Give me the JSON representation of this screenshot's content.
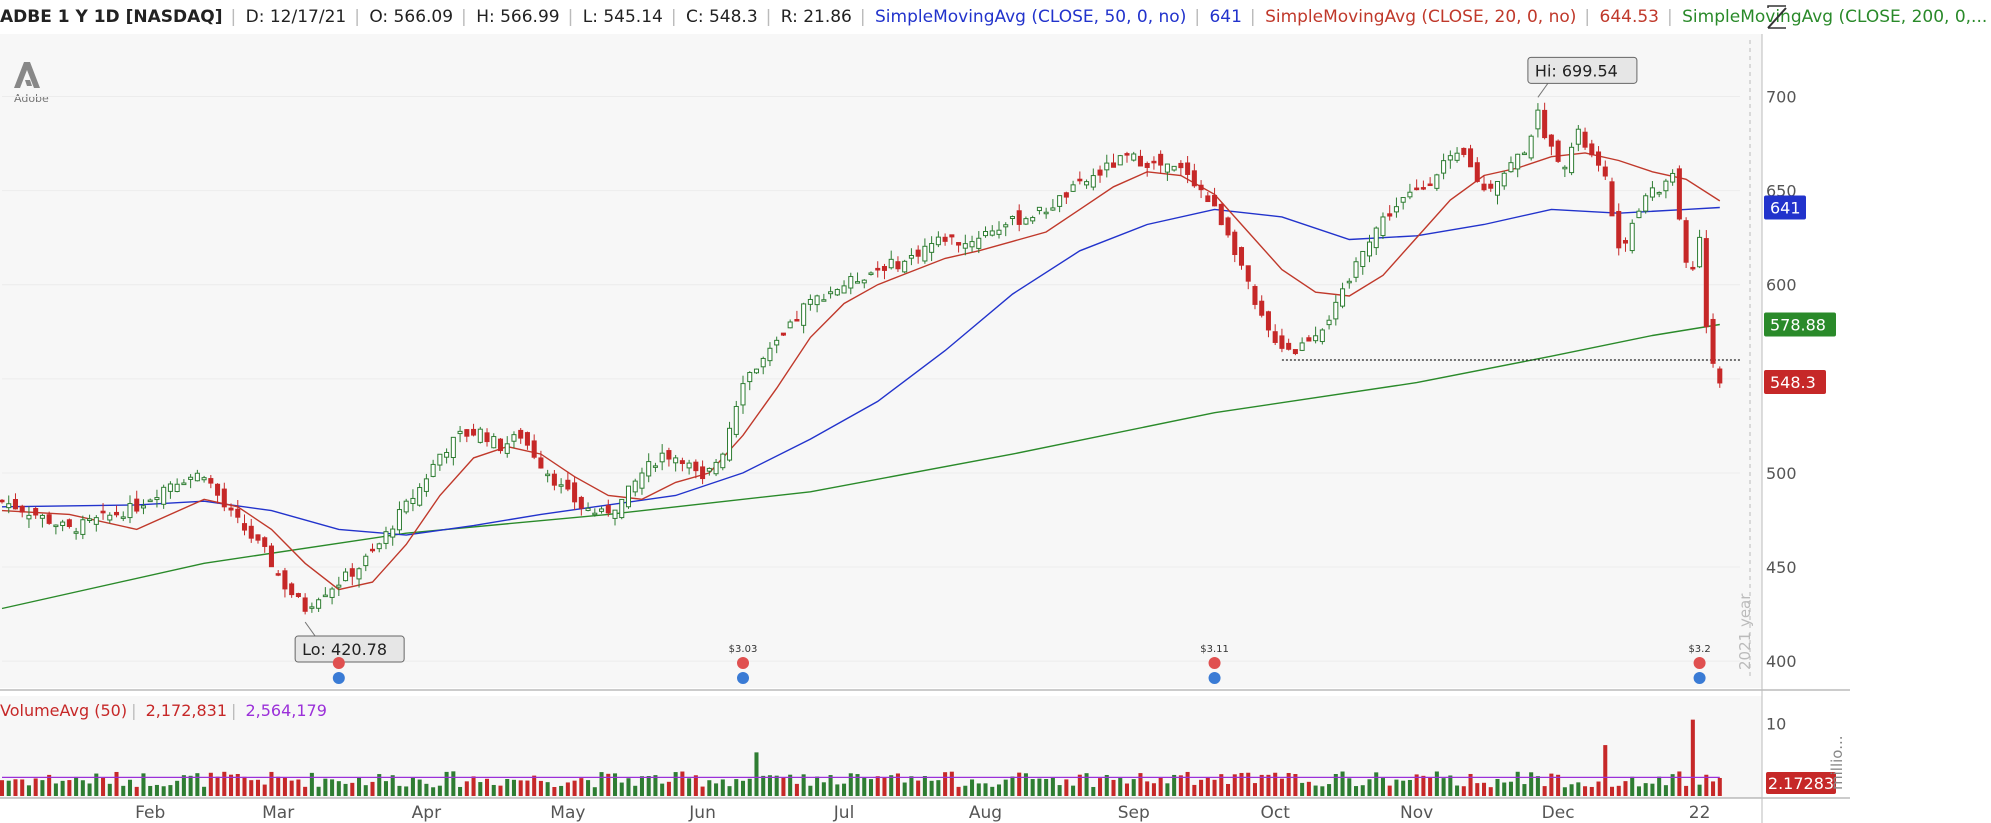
{
  "header": {
    "symbol": "ADBE 1 Y 1D [NASDAQ]",
    "date": "D: 12/17/21",
    "open": "O: 566.09",
    "high": "H: 566.99",
    "low": "L: 545.14",
    "close": "C: 548.3",
    "range": "R: 21.86",
    "sma50_label": "SimpleMovingAvg (CLOSE, 50, 0, no)",
    "sma50_value": "641",
    "sma20_label": "SimpleMovingAvg (CLOSE, 20, 0, no)",
    "sma20_value": "644.53",
    "sma200_label": "SimpleMovingAvg (CLOSE, 200, 0,..."
  },
  "volume_header": {
    "label": "VolumeAvg (50)",
    "volume": "2,172,831",
    "avg": "2,564,179"
  },
  "colors": {
    "up": "#2e7d32",
    "down": "#c62828",
    "sma50": "#2233cc",
    "sma20": "#c0392b",
    "sma200": "#2a8a2a",
    "vol_avg": "#9b30d9"
  },
  "icons": {
    "logo": "adobe-logo",
    "corner": "chart-style-icon"
  },
  "chart_data": {
    "type": "candlestick",
    "symbol": "ADBE",
    "ylim": [
      390,
      730
    ],
    "yticks": [
      400,
      450,
      500,
      550,
      600,
      650,
      700
    ],
    "xticks": [
      {
        "label": "Feb",
        "index": 22
      },
      {
        "label": "Mar",
        "index": 41
      },
      {
        "label": "Apr",
        "index": 63
      },
      {
        "label": "May",
        "index": 84
      },
      {
        "label": "Jun",
        "index": 104
      },
      {
        "label": "Jul",
        "index": 125
      },
      {
        "label": "Aug",
        "index": 146
      },
      {
        "label": "Sep",
        "index": 168
      },
      {
        "label": "Oct",
        "index": 189
      },
      {
        "label": "Nov",
        "index": 210
      },
      {
        "label": "Dec",
        "index": 231
      },
      {
        "label": "22",
        "index": 252
      }
    ],
    "year_label": "2021 year",
    "bars_total": 253,
    "path": [
      [
        0,
        485
      ],
      [
        5,
        478
      ],
      [
        10,
        470
      ],
      [
        15,
        476
      ],
      [
        20,
        482
      ],
      [
        25,
        495
      ],
      [
        30,
        500
      ],
      [
        33,
        482
      ],
      [
        36,
        470
      ],
      [
        39,
        458
      ],
      [
        42,
        440
      ],
      [
        45,
        428
      ],
      [
        47,
        435
      ],
      [
        50,
        442
      ],
      [
        53,
        450
      ],
      [
        56,
        462
      ],
      [
        59,
        478
      ],
      [
        62,
        492
      ],
      [
        65,
        510
      ],
      [
        68,
        520
      ],
      [
        71,
        522
      ],
      [
        74,
        514
      ],
      [
        77,
        520
      ],
      [
        80,
        505
      ],
      [
        83,
        492
      ],
      [
        86,
        482
      ],
      [
        89,
        478
      ],
      [
        92,
        485
      ],
      [
        95,
        500
      ],
      [
        98,
        510
      ],
      [
        101,
        508
      ],
      [
        104,
        495
      ],
      [
        107,
        512
      ],
      [
        110,
        550
      ],
      [
        113,
        560
      ],
      [
        116,
        572
      ],
      [
        119,
        588
      ],
      [
        122,
        595
      ],
      [
        125,
        600
      ],
      [
        128,
        605
      ],
      [
        131,
        610
      ],
      [
        134,
        612
      ],
      [
        137,
        620
      ],
      [
        140,
        625
      ],
      [
        143,
        622
      ],
      [
        146,
        628
      ],
      [
        149,
        632
      ],
      [
        152,
        636
      ],
      [
        155,
        640
      ],
      [
        158,
        648
      ],
      [
        161,
        655
      ],
      [
        164,
        662
      ],
      [
        167,
        668
      ],
      [
        170,
        665
      ],
      [
        173,
        662
      ],
      [
        176,
        660
      ],
      [
        178,
        650
      ],
      [
        180,
        640
      ],
      [
        182,
        628
      ],
      [
        184,
        610
      ],
      [
        186,
        588
      ],
      [
        188,
        575
      ],
      [
        190,
        568
      ],
      [
        192,
        565
      ],
      [
        194,
        572
      ],
      [
        196,
        578
      ],
      [
        198,
        588
      ],
      [
        200,
        602
      ],
      [
        202,
        620
      ],
      [
        205,
        635
      ],
      [
        208,
        645
      ],
      [
        211,
        652
      ],
      [
        214,
        665
      ],
      [
        217,
        668
      ],
      [
        220,
        650
      ],
      [
        223,
        660
      ],
      [
        226,
        672
      ],
      [
        228,
        690
      ],
      [
        230,
        672
      ],
      [
        232,
        665
      ],
      [
        234,
        680
      ],
      [
        236,
        668
      ],
      [
        238,
        655
      ],
      [
        240,
        620
      ],
      [
        242,
        630
      ],
      [
        244,
        648
      ],
      [
        246,
        650
      ],
      [
        248,
        660
      ],
      [
        249,
        632
      ],
      [
        250,
        612
      ],
      [
        251,
        610
      ],
      [
        252,
        625
      ],
      [
        253,
        580
      ],
      [
        254,
        560
      ],
      [
        255,
        548.3
      ]
    ],
    "sma20_path": [
      [
        0,
        480
      ],
      [
        10,
        478
      ],
      [
        20,
        470
      ],
      [
        30,
        486
      ],
      [
        35,
        482
      ],
      [
        40,
        470
      ],
      [
        45,
        452
      ],
      [
        50,
        438
      ],
      [
        55,
        442
      ],
      [
        60,
        462
      ],
      [
        65,
        488
      ],
      [
        70,
        508
      ],
      [
        75,
        514
      ],
      [
        80,
        510
      ],
      [
        85,
        498
      ],
      [
        90,
        488
      ],
      [
        95,
        486
      ],
      [
        100,
        495
      ],
      [
        105,
        500
      ],
      [
        110,
        520
      ],
      [
        115,
        545
      ],
      [
        120,
        572
      ],
      [
        125,
        590
      ],
      [
        130,
        600
      ],
      [
        135,
        607
      ],
      [
        140,
        614
      ],
      [
        145,
        618
      ],
      [
        150,
        623
      ],
      [
        155,
        628
      ],
      [
        160,
        640
      ],
      [
        165,
        652
      ],
      [
        170,
        660
      ],
      [
        175,
        658
      ],
      [
        180,
        648
      ],
      [
        185,
        628
      ],
      [
        190,
        608
      ],
      [
        195,
        596
      ],
      [
        200,
        594
      ],
      [
        205,
        605
      ],
      [
        210,
        625
      ],
      [
        215,
        645
      ],
      [
        220,
        658
      ],
      [
        225,
        662
      ],
      [
        230,
        668
      ],
      [
        235,
        670
      ],
      [
        240,
        666
      ],
      [
        245,
        660
      ],
      [
        250,
        656
      ],
      [
        255,
        644.53
      ]
    ],
    "sma50_path": [
      [
        0,
        482
      ],
      [
        20,
        483
      ],
      [
        30,
        485
      ],
      [
        40,
        480
      ],
      [
        50,
        470
      ],
      [
        60,
        467
      ],
      [
        70,
        472
      ],
      [
        80,
        478
      ],
      [
        90,
        483
      ],
      [
        100,
        488
      ],
      [
        110,
        500
      ],
      [
        120,
        518
      ],
      [
        130,
        538
      ],
      [
        140,
        565
      ],
      [
        150,
        595
      ],
      [
        160,
        618
      ],
      [
        170,
        632
      ],
      [
        180,
        640
      ],
      [
        190,
        636
      ],
      [
        200,
        624
      ],
      [
        210,
        626
      ],
      [
        220,
        632
      ],
      [
        230,
        640
      ],
      [
        240,
        638
      ],
      [
        250,
        640
      ],
      [
        255,
        641
      ]
    ],
    "sma200_path": [
      [
        0,
        428
      ],
      [
        30,
        452
      ],
      [
        60,
        468
      ],
      [
        90,
        478
      ],
      [
        120,
        490
      ],
      [
        150,
        510
      ],
      [
        180,
        532
      ],
      [
        210,
        548
      ],
      [
        230,
        562
      ],
      [
        245,
        573
      ],
      [
        255,
        578.88
      ]
    ],
    "support_line": {
      "y": 560,
      "from_index": 190,
      "to_index": 258
    },
    "annotations": [
      {
        "text": "Hi: 699.54",
        "index": 228,
        "value": 699.54
      },
      {
        "text": "Lo: 420.78",
        "index": 45,
        "value": 420.78
      }
    ],
    "price_labels": [
      {
        "text": "641",
        "value": 641,
        "color": "#2233cc"
      },
      {
        "text": "578.88",
        "value": 578.88,
        "color": "#2a8a2a"
      },
      {
        "text": "548.3",
        "value": 548.3,
        "color": "#c62828"
      }
    ],
    "dividend_markers": [
      {
        "text": "",
        "index": 50
      },
      {
        "text": "$3.03",
        "index": 110
      },
      {
        "text": "$3.11",
        "index": 180
      },
      {
        "text": "$3.2",
        "index": 252
      }
    ],
    "volume": {
      "ylim": [
        0,
        11
      ],
      "yticks": [
        10
      ],
      "unit_label": "millio...",
      "current_label": "2.17283",
      "spikes": [
        {
          "index": 112,
          "value": 6
        },
        {
          "index": 238,
          "value": 7
        },
        {
          "index": 251,
          "value": 10.5
        }
      ],
      "avg": 2.56
    }
  }
}
